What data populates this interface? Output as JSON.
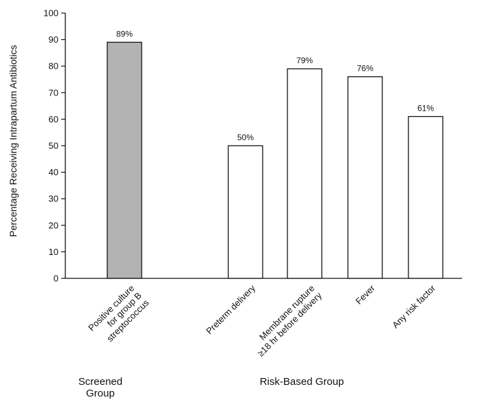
{
  "chart_data": {
    "type": "bar",
    "ylabel": "Percentage Receiving Intrapartum Antibiotics",
    "xlabel": "",
    "ylim": [
      0,
      100
    ],
    "yticks": [
      0,
      10,
      20,
      30,
      40,
      50,
      60,
      70,
      80,
      90,
      100
    ],
    "grid": false,
    "categories": [
      [
        "Positive culture",
        "for group B",
        "streptococcus"
      ],
      [
        "Preterm delivery"
      ],
      [
        "Membrane rupture",
        "≥18 hr before delivery"
      ],
      [
        "Fever"
      ],
      [
        "Any risk factor"
      ]
    ],
    "values": [
      89,
      50,
      79,
      76,
      61
    ],
    "data_labels": [
      "89%",
      "50%",
      "79%",
      "76%",
      "61%"
    ],
    "bar_fill": [
      "#b3b3b3",
      "#ffffff",
      "#ffffff",
      "#ffffff",
      "#ffffff"
    ],
    "groups": [
      {
        "label": [
          "Screened",
          "Group"
        ],
        "members": [
          0
        ]
      },
      {
        "label": [
          "Risk-Based Group"
        ],
        "members": [
          1,
          2,
          3,
          4
        ]
      }
    ]
  }
}
